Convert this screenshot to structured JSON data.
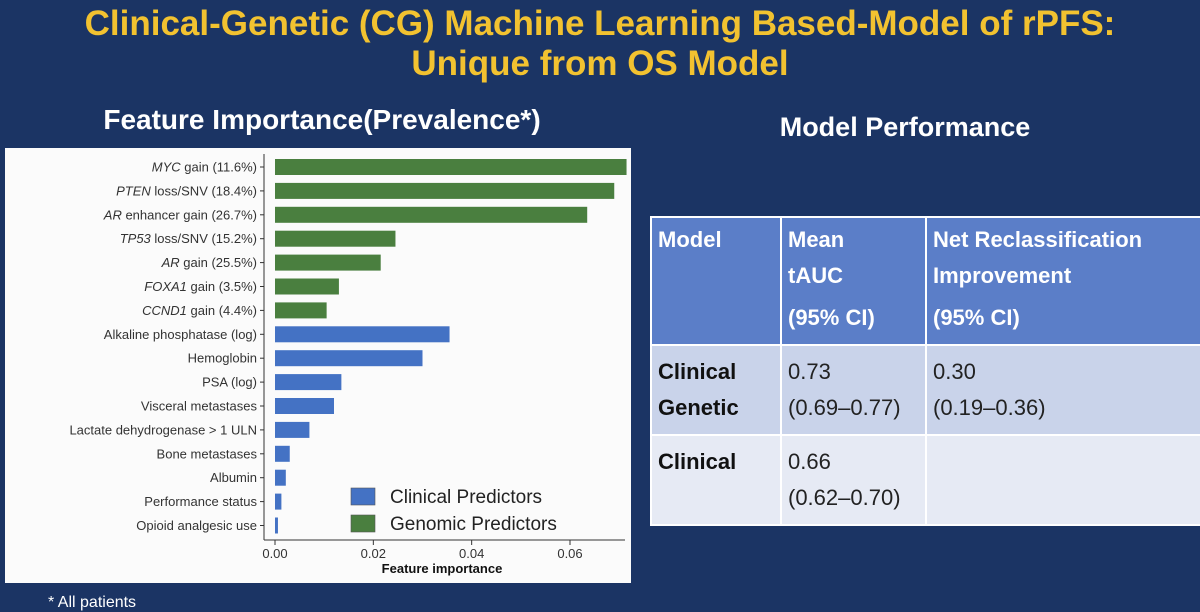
{
  "slide": {
    "title_line1": "Clinical-Genetic (CG) Machine Learning Based-Model of rPFS:",
    "title_line2": "Unique from OS Model",
    "feature_heading": "Feature Importance(Prevalence*)",
    "performance_heading": "Model Performance",
    "footnote": "* All patients"
  },
  "colors": {
    "clinical": "#4472c4",
    "genomic": "#4a7f3f",
    "title": "#f2c230",
    "background": "#1b3464"
  },
  "chart_data": {
    "type": "bar",
    "orientation": "horizontal",
    "categories": [
      {
        "italic": "MYC",
        "rest": " gain (11.6%)",
        "group": "genomic"
      },
      {
        "italic": "PTEN",
        "rest": " loss/SNV (18.4%)",
        "group": "genomic"
      },
      {
        "italic": "AR",
        "rest": " enhancer gain (26.7%)",
        "group": "genomic"
      },
      {
        "italic": "TP53",
        "rest": " loss/SNV (15.2%)",
        "group": "genomic"
      },
      {
        "italic": "AR",
        "rest": " gain (25.5%)",
        "group": "genomic"
      },
      {
        "italic": "FOXA1",
        "rest": " gain (3.5%)",
        "group": "genomic"
      },
      {
        "italic": "CCND1",
        "rest": " gain (4.4%)",
        "group": "genomic"
      },
      {
        "italic": "",
        "rest": "Alkaline phosphatase (log)",
        "group": "clinical"
      },
      {
        "italic": "",
        "rest": "Hemoglobin",
        "group": "clinical"
      },
      {
        "italic": "",
        "rest": "PSA (log)",
        "group": "clinical"
      },
      {
        "italic": "",
        "rest": "Visceral metastases",
        "group": "clinical"
      },
      {
        "italic": "",
        "rest": "Lactate dehydrogenase > 1 ULN",
        "group": "clinical"
      },
      {
        "italic": "",
        "rest": "Bone metastases",
        "group": "clinical"
      },
      {
        "italic": "",
        "rest": "Albumin",
        "group": "clinical"
      },
      {
        "italic": "",
        "rest": "Performance status",
        "group": "clinical"
      },
      {
        "italic": "",
        "rest": "Opioid analgesic use",
        "group": "clinical"
      }
    ],
    "values": [
      0.0715,
      0.069,
      0.0635,
      0.0245,
      0.0215,
      0.013,
      0.0105,
      0.0355,
      0.03,
      0.0135,
      0.012,
      0.007,
      0.003,
      0.0022,
      0.0013,
      0.0006
    ],
    "xlabel": "Feature importance",
    "xlim": [
      -0.003,
      0.075
    ],
    "xticks": [
      0.0,
      0.02,
      0.04,
      0.06
    ],
    "xtick_labels": [
      "0.00",
      "0.02",
      "0.04",
      "0.06"
    ],
    "legend": [
      {
        "name": "Clinical Predictors",
        "group": "clinical"
      },
      {
        "name": "Genomic Predictors",
        "group": "genomic"
      }
    ],
    "legend_position": "bottom-right",
    "grid": false
  },
  "table": {
    "headers": [
      [
        "Model"
      ],
      [
        "Mean",
        "tAUC",
        "(95% CI)"
      ],
      [
        "Net Reclassification",
        "Improvement",
        "(95% CI)"
      ]
    ],
    "rows": [
      {
        "model": [
          "Clinical",
          "Genetic"
        ],
        "tauc": [
          "0.73",
          "(0.69–0.77)"
        ],
        "nri": [
          "0.30",
          "(0.19–0.36)"
        ]
      },
      {
        "model": [
          "Clinical"
        ],
        "tauc": [
          "0.66",
          "(0.62–0.70)"
        ],
        "nri": []
      }
    ]
  }
}
